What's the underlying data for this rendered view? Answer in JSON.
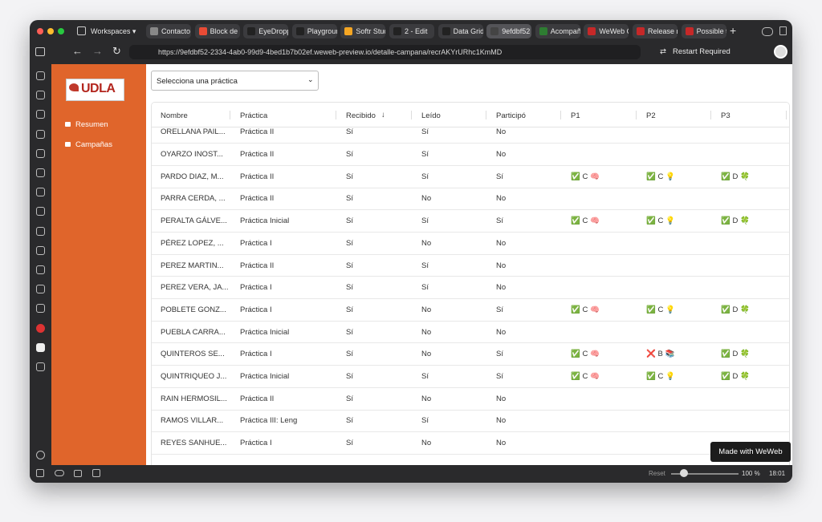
{
  "browser": {
    "workspaces": "Workspaces",
    "tabs": [
      "Contacto",
      "Block de",
      "EyeDropp",
      "Playgroun",
      "Softr Stud",
      "2 - Edit",
      "Data Grid",
      "9efdbf52",
      "Acompañ",
      "WeWeb C",
      "Release n",
      "Possible t"
    ],
    "url": "https://9efdbf52-2334-4ab0-99d9-4bed1b7b02ef.weweb-preview.io/detalle-campana/recrAKYrURhc1KmMD",
    "restart": "Restart Required"
  },
  "sidebar": {
    "logo": "UDLA",
    "nav": [
      "Resumen",
      "Campañas"
    ]
  },
  "select": "Selecciona una práctica",
  "grid": {
    "columns": [
      "Nombre",
      "Práctica",
      "Recibido",
      "Leído",
      "Participó",
      "P1",
      "P2",
      "P3"
    ],
    "rows": [
      [
        "ORELLANA PAIL...",
        "Práctica II",
        "Sí",
        "Sí",
        "No"
      ],
      [
        "OYARZO INOST...",
        "Práctica II",
        "Sí",
        "Sí",
        "No"
      ],
      [
        "PARDO DIAZ, M...",
        "Práctica II",
        "Sí",
        "Sí",
        "Sí",
        "✅ C 🧠",
        "✅ C 💡",
        "✅ D 🍀"
      ],
      [
        "PARRA CERDA, ...",
        "Práctica II",
        "Sí",
        "No",
        "No"
      ],
      [
        "PERALTA GÁLVE...",
        "Práctica Inicial",
        "Sí",
        "Sí",
        "Sí",
        "✅ C 🧠",
        "✅ C 💡",
        "✅ D 🍀"
      ],
      [
        "PÉREZ LOPEZ, ...",
        "Práctica I",
        "Sí",
        "No",
        "No"
      ],
      [
        "PEREZ MARTIN...",
        "Práctica II",
        "Sí",
        "Sí",
        "No"
      ],
      [
        "PEREZ VERA, JA...",
        "Práctica I",
        "Sí",
        "Sí",
        "No"
      ],
      [
        "POBLETE GONZ...",
        "Práctica I",
        "Sí",
        "No",
        "Sí",
        "✅ C 🧠",
        "✅ C 💡",
        "✅ D 🍀"
      ],
      [
        "PUEBLA CARRA...",
        "Práctica Inicial",
        "Sí",
        "No",
        "No"
      ],
      [
        "QUINTEROS SE...",
        "Práctica I",
        "Sí",
        "No",
        "Sí",
        "✅ C 🧠",
        "❌ B 📚",
        "✅ D 🍀"
      ],
      [
        "QUINTRIQUEO J...",
        "Práctica Inicial",
        "Sí",
        "Sí",
        "Sí",
        "✅ C 🧠",
        "✅ C 💡",
        "✅ D 🍀"
      ],
      [
        "RAIN HERMOSIL...",
        "Práctica II",
        "Sí",
        "No",
        "No"
      ],
      [
        "RAMOS VILLAR...",
        "Práctica III: Leng",
        "Sí",
        "Sí",
        "No"
      ],
      [
        "REYES SANHUE...",
        "Práctica I",
        "Sí",
        "No",
        "No"
      ]
    ]
  },
  "badge": "Made with WeWeb",
  "statusbar": {
    "reset": "Reset",
    "zoom": "100 %",
    "time": "18:01"
  }
}
